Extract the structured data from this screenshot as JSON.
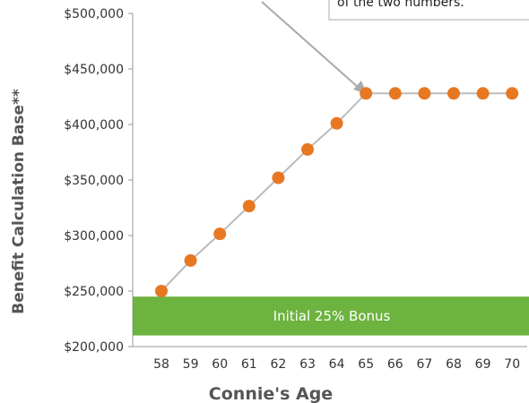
{
  "chart_data": {
    "type": "line",
    "xlabel": "Connie's Age",
    "ylabel": "Benefit Calculation Base**",
    "x": [
      58,
      59,
      60,
      61,
      62,
      63,
      64,
      65,
      66,
      67,
      68,
      69,
      70
    ],
    "series": [
      {
        "values": [
          250000,
          277500,
          301500,
          326500,
          352000,
          377500,
          401000,
          428000,
          428000,
          428000,
          428000,
          428000,
          428000
        ]
      }
    ],
    "yticks": [
      "$200,000",
      "$250,000",
      "$300,000",
      "$350,000",
      "$400,000",
      "$450,000",
      "$500,000"
    ],
    "ylim": [
      200000,
      500000
    ],
    "bonus_label": "Initial 25% Bonus",
    "bonus_range": [
      210000,
      245000
    ],
    "annotation_text": "of the two numbers.",
    "colors": {
      "marker": "#E87722",
      "line": "#BBBBBB",
      "bonus": "#6DB33F",
      "axis": "#999999"
    }
  }
}
